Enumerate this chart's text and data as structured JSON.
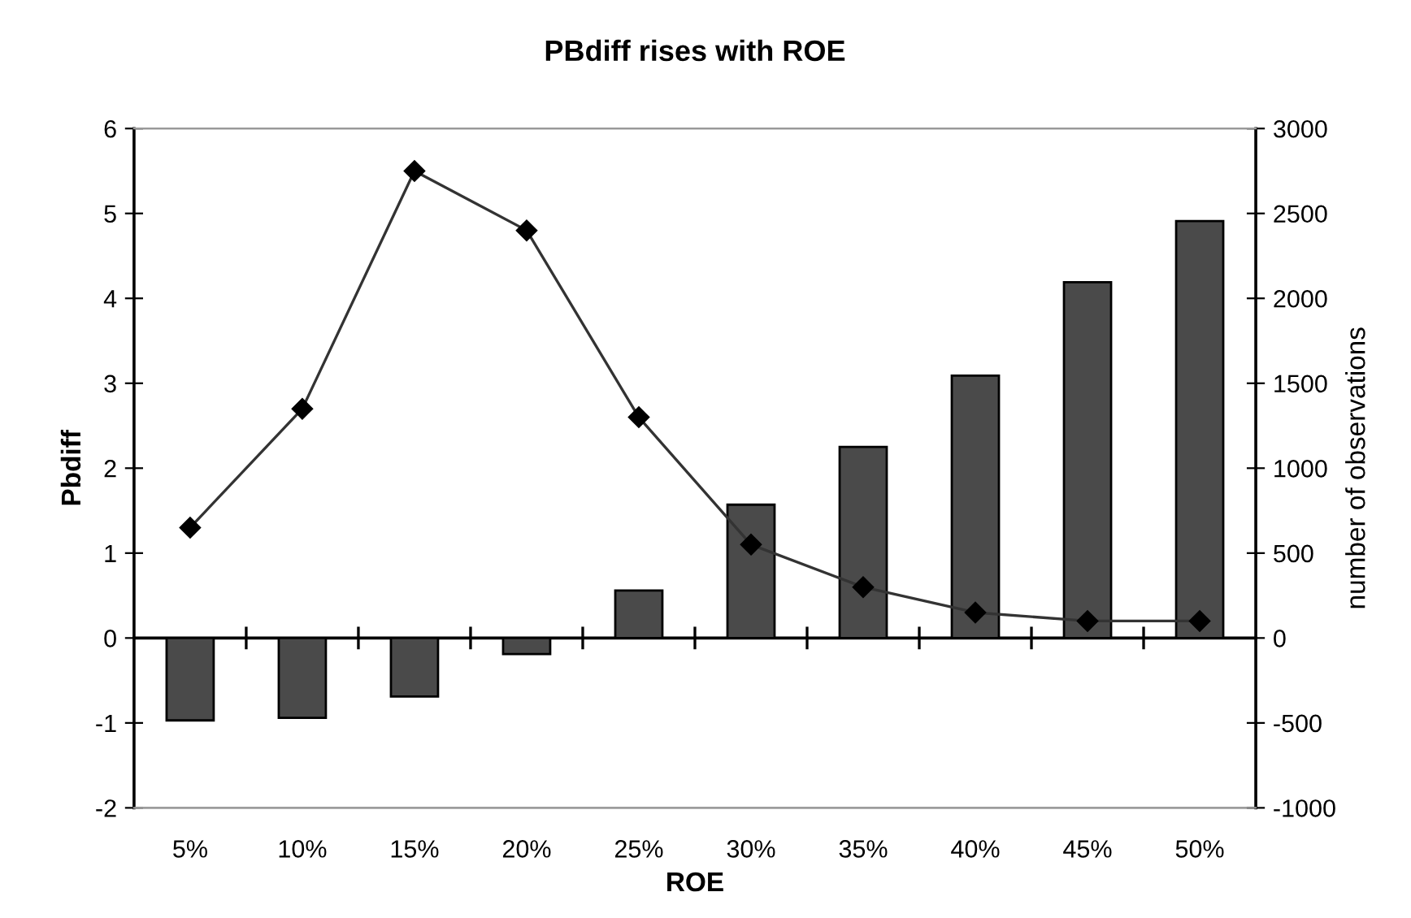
{
  "chart_data": {
    "type": "bar",
    "title": "PBdiff rises with ROE",
    "xlabel": "ROE",
    "ylabel": "Pbdiff",
    "y2label": "number of observations",
    "categories": [
      "5%",
      "10%",
      "15%",
      "20%",
      "25%",
      "30%",
      "35%",
      "40%",
      "45%",
      "50%"
    ],
    "series": [
      {
        "color": "#4a4a4a",
        "values": [
          -0.97,
          -0.94,
          -0.69,
          -0.19,
          0.56,
          1.57,
          2.25,
          3.09,
          4.19,
          4.91
        ]
      },
      {
        "type": "line",
        "axis": "y2",
        "color": "#333333",
        "marker": "diamond",
        "line_style": "solid",
        "values": [
          650,
          1350,
          2750,
          2400,
          1300,
          550,
          300,
          150,
          100,
          100
        ]
      }
    ],
    "ylim": [
      -2,
      6
    ],
    "yticks": [
      -2,
      -1,
      0,
      1,
      2,
      3,
      4,
      5,
      6
    ],
    "y2lim": [
      -1000,
      3000
    ],
    "y2ticks": [
      -1000,
      -500,
      0,
      500,
      1000,
      1500,
      2000,
      2500,
      3000
    ],
    "legend": false
  }
}
